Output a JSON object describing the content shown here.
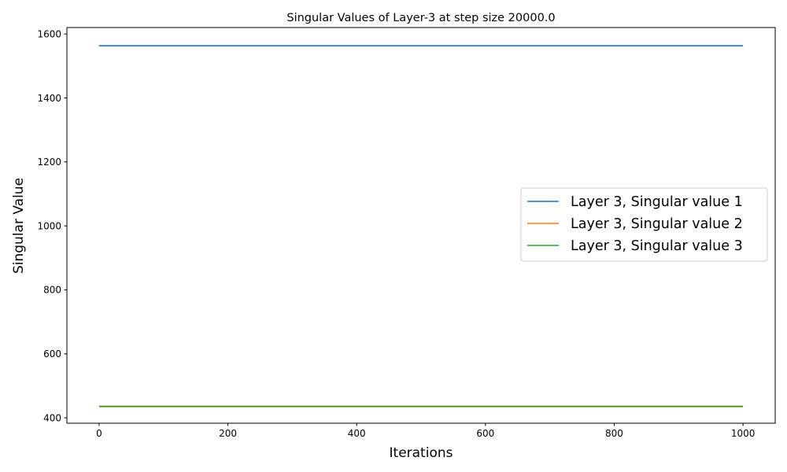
{
  "chart_data": {
    "type": "line",
    "title": "Singular Values of Layer-3 at step size 20000.0",
    "xlabel": "Iterations",
    "ylabel": "Singular Value",
    "xlim": [
      -50,
      1050
    ],
    "ylim": [
      383,
      1620
    ],
    "xticks": [
      0,
      200,
      400,
      600,
      800,
      1000
    ],
    "yticks": [
      400,
      600,
      800,
      1000,
      1200,
      1400,
      1600
    ],
    "grid": false,
    "legend_position": "center-right",
    "series": [
      {
        "name": "Layer 3, Singular value 1",
        "color": "#1f77b4",
        "x": [
          0,
          1000
        ],
        "y": [
          1563,
          1563
        ]
      },
      {
        "name": "Layer 3, Singular value 2",
        "color": "#ff7f0e",
        "x": [
          0,
          1000
        ],
        "y": [
          435,
          435
        ]
      },
      {
        "name": "Layer 3, Singular value 3",
        "color": "#2ca02c",
        "x": [
          0,
          1000
        ],
        "y": [
          436,
          436
        ]
      }
    ]
  }
}
